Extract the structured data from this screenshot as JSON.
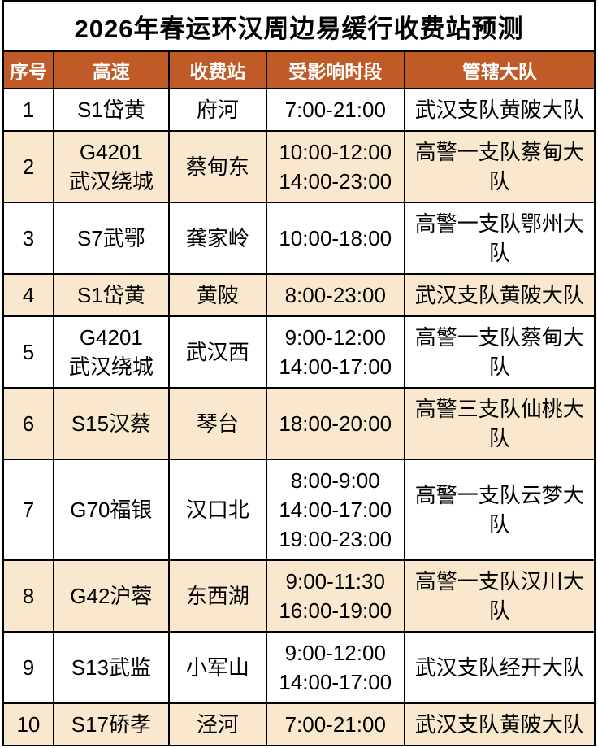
{
  "title": "2026年春运环汉周边易缓行收费站预测",
  "table": {
    "columns": [
      {
        "key": "index",
        "label": "序号"
      },
      {
        "key": "highway",
        "label": "高速"
      },
      {
        "key": "station",
        "label": "收费站"
      },
      {
        "key": "period",
        "label": "受影响时段"
      },
      {
        "key": "brigade",
        "label": "管辖大队"
      }
    ],
    "rows": [
      {
        "index": "1",
        "highway": [
          "S1岱黄"
        ],
        "station": "府河",
        "period": [
          "7:00-21:00"
        ],
        "brigade": "武汉支队黄陂大队"
      },
      {
        "index": "2",
        "highway": [
          "G4201",
          "武汉绕城"
        ],
        "station": "蔡甸东",
        "period": [
          "10:00-12:00",
          "14:00-23:00"
        ],
        "brigade": "高警一支队蔡甸大队"
      },
      {
        "index": "3",
        "highway": [
          "S7武鄂"
        ],
        "station": "龚家岭",
        "period": [
          "10:00-18:00"
        ],
        "brigade": "高警一支队鄂州大队"
      },
      {
        "index": "4",
        "highway": [
          "S1岱黄"
        ],
        "station": "黄陂",
        "period": [
          "8:00-23:00"
        ],
        "brigade": "武汉支队黄陂大队"
      },
      {
        "index": "5",
        "highway": [
          "G4201",
          "武汉绕城"
        ],
        "station": "武汉西",
        "period": [
          "9:00-12:00",
          "14:00-17:00"
        ],
        "brigade": "高警一支队蔡甸大队"
      },
      {
        "index": "6",
        "highway": [
          "S15汉蔡"
        ],
        "station": "琴台",
        "period": [
          "18:00-20:00"
        ],
        "brigade": "高警三支队仙桃大队"
      },
      {
        "index": "7",
        "highway": [
          "G70福银"
        ],
        "station": "汉口北",
        "period": [
          "8:00-9:00",
          "14:00-17:00",
          "19:00-23:00"
        ],
        "brigade": "高警一支队云梦大队"
      },
      {
        "index": "8",
        "highway": [
          "G42沪蓉"
        ],
        "station": "东西湖",
        "period": [
          "9:00-11:30",
          "16:00-19:00"
        ],
        "brigade": "高警一支队汉川大队"
      },
      {
        "index": "9",
        "highway": [
          "S13武监"
        ],
        "station": "小军山",
        "period": [
          "9:00-12:00",
          "14:00-17:00"
        ],
        "brigade": "武汉支队经开大队"
      },
      {
        "index": "10",
        "highway": [
          "S17硚孝"
        ],
        "station": "泾河",
        "period": [
          "7:00-21:00"
        ],
        "brigade": "武汉支队黄陂大队"
      }
    ]
  },
  "colors": {
    "header_bg": "#c05a26",
    "header_text": "#ffffff",
    "row_bg": "#ffffff",
    "row_alt_bg": "#fae8ce",
    "border": "#000000",
    "title_text": "#000000",
    "body_text": "#000000"
  }
}
